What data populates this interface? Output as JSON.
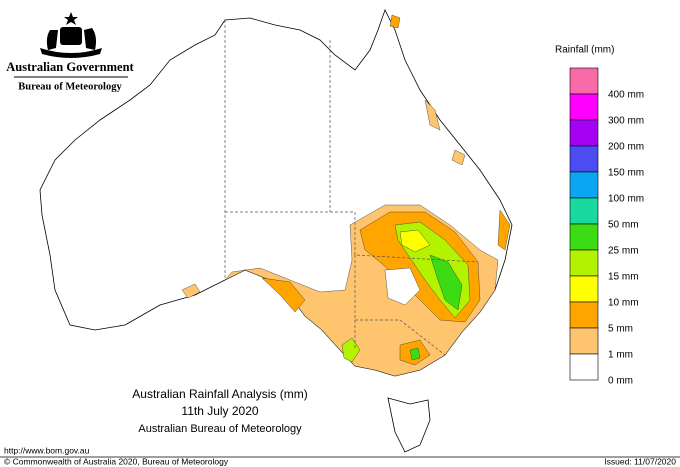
{
  "header": {
    "agency": "Australian Government",
    "bureau": "Bureau of Meteorology"
  },
  "legend": {
    "title": "Rainfall (mm)",
    "items": [
      {
        "color": "#f76aa8",
        "label": "400 mm"
      },
      {
        "color": "#ff00ff",
        "label": "300 mm"
      },
      {
        "color": "#a600f2",
        "label": "200 mm"
      },
      {
        "color": "#4c4cf2",
        "label": "150 mm"
      },
      {
        "color": "#0aa6f2",
        "label": "100 mm"
      },
      {
        "color": "#19d99e",
        "label": "50 mm"
      },
      {
        "color": "#3cdc14",
        "label": "25 mm"
      },
      {
        "color": "#b3f200",
        "label": "15 mm"
      },
      {
        "color": "#ffff00",
        "label": "10 mm"
      },
      {
        "color": "#ffa500",
        "label": "5 mm"
      },
      {
        "color": "#ffc46e",
        "label": "1 mm"
      },
      {
        "color": "#ffffff",
        "label": "0 mm"
      }
    ]
  },
  "map": {
    "title": "Australian Rainfall Analysis (mm)",
    "date": "11th July 2020",
    "source": "Australian Bureau of Meteorology"
  },
  "footer": {
    "url": "http://www.bom.gov.au",
    "copyright": "© Commonwealth of Australia 2020, Bureau of Meteorology",
    "issued": "Issued: 11/07/2020"
  }
}
